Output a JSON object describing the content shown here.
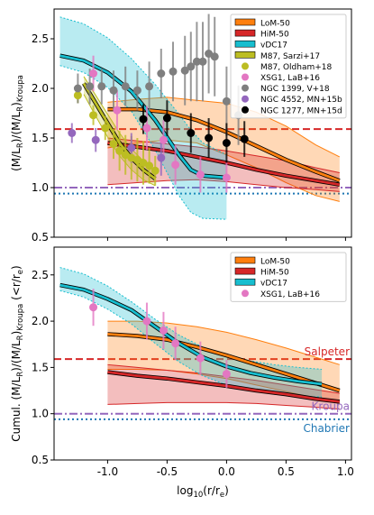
{
  "chart_data": [
    {
      "type": "line",
      "ylabel": "(M/L_R)/(M/L_R)_Kroupa",
      "xlim": [
        -1.45,
        1.05
      ],
      "ylim": [
        0.5,
        2.8
      ],
      "yticks": [
        "0.5",
        "1.0",
        "1.5",
        "2.0",
        "2.5"
      ],
      "grid": false,
      "legend_position": "top-right",
      "legend": [
        {
          "label": "LoM-50",
          "color": "#ff7f0e",
          "kind": "band"
        },
        {
          "label": "HiM-50",
          "color": "#d62728",
          "kind": "band"
        },
        {
          "label": "vDC17",
          "color": "#17becf",
          "kind": "band"
        },
        {
          "label": "M87, Sarzi+17",
          "color": "#bcbd22",
          "kind": "band"
        },
        {
          "label": "M87, Oldham+18",
          "color": "#bcbd22",
          "kind": "point"
        },
        {
          "label": "XSG1, LaB+16",
          "color": "#e377c2",
          "kind": "point"
        },
        {
          "label": "NGC 1399, V+18",
          "color": "#7f7f7f",
          "kind": "point"
        },
        {
          "label": "NGC 4552, MN+15b",
          "color": "#9467bd",
          "kind": "point"
        },
        {
          "label": "NGC 1277, MN+15d",
          "color": "#000000",
          "kind": "point"
        }
      ],
      "reference_lines": [
        {
          "name": "Salpeter",
          "y": 1.59,
          "color": "#d62728",
          "style": "dashed"
        },
        {
          "name": "Kroupa",
          "y": 1.0,
          "color": "#9467bd",
          "style": "dashdot"
        },
        {
          "name": "Chabrier",
          "y": 0.94,
          "color": "#1f77b4",
          "style": "dotted"
        }
      ],
      "series": [
        {
          "name": "LoM-50",
          "x": [
            -1.0,
            -0.75,
            -0.5,
            -0.25,
            0.0,
            0.25,
            0.5,
            0.75,
            0.95
          ],
          "y": [
            1.79,
            1.79,
            1.76,
            1.68,
            1.56,
            1.42,
            1.28,
            1.16,
            1.07
          ],
          "lower": [
            1.4,
            1.45,
            1.48,
            1.45,
            1.33,
            1.2,
            1.05,
            0.92,
            0.86
          ],
          "upper": [
            1.86,
            1.89,
            1.91,
            1.88,
            1.85,
            1.76,
            1.62,
            1.43,
            1.31
          ]
        },
        {
          "name": "HiM-50",
          "x": [
            -1.0,
            -0.75,
            -0.5,
            -0.25,
            0.0,
            0.25,
            0.5,
            0.75,
            0.95
          ],
          "y": [
            1.45,
            1.41,
            1.37,
            1.31,
            1.25,
            1.18,
            1.12,
            1.07,
            1.03
          ],
          "lower": [
            1.03,
            1.05,
            1.07,
            1.08,
            1.06,
            1.03,
            1.0,
            0.98,
            0.96
          ],
          "upper": [
            1.5,
            1.47,
            1.44,
            1.41,
            1.37,
            1.32,
            1.27,
            1.2,
            1.15
          ]
        },
        {
          "name": "vDC17",
          "x": [
            -1.4,
            -1.2,
            -1.0,
            -0.8,
            -0.6,
            -0.4,
            -0.3,
            -0.2,
            0.0
          ],
          "y": [
            2.33,
            2.28,
            2.16,
            1.97,
            1.68,
            1.33,
            1.18,
            1.12,
            1.1
          ],
          "lower": [
            2.23,
            2.16,
            2.01,
            1.77,
            1.38,
            0.92,
            0.75,
            0.69,
            0.68
          ],
          "upper": [
            2.72,
            2.65,
            2.51,
            2.3,
            2.04,
            1.74,
            1.58,
            1.45,
            1.33
          ]
        },
        {
          "name": "M87, Sarzi+17",
          "x": [
            -1.2,
            -1.1,
            -1.0,
            -0.9,
            -0.8,
            -0.7,
            -0.6
          ],
          "y": [
            2.05,
            1.85,
            1.65,
            1.45,
            1.3,
            1.18,
            1.09
          ],
          "lower": [
            1.94,
            1.72,
            1.51,
            1.32,
            1.18,
            1.08,
            1.02
          ],
          "upper": [
            2.12,
            1.93,
            1.74,
            1.55,
            1.39,
            1.27,
            1.17
          ]
        },
        {
          "name": "M87, Oldham+18",
          "x": [
            -1.25,
            -1.12,
            -1.02,
            -0.95,
            -0.9,
            -0.85,
            -0.8,
            -0.75,
            -0.7,
            -0.65,
            -0.6
          ],
          "y": [
            1.93,
            1.73,
            1.6,
            1.44,
            1.37,
            1.33,
            1.3,
            1.28,
            1.25,
            1.22,
            1.17
          ],
          "err": [
            0.08,
            0.1,
            0.12,
            0.15,
            0.2,
            0.2,
            0.22,
            0.22,
            0.22,
            0.18,
            0.15
          ]
        },
        {
          "name": "XSG1, LaB+16",
          "x": [
            -1.12,
            -0.92,
            -0.67,
            -0.53,
            -0.43,
            -0.22,
            0.0
          ],
          "y": [
            2.15,
            1.78,
            1.6,
            1.48,
            1.23,
            1.13,
            1.1
          ],
          "err": [
            0.18,
            0.2,
            0.22,
            0.2,
            0.2,
            0.18,
            0.15
          ]
        },
        {
          "name": "NGC 1399, V+18",
          "x": [
            -1.25,
            -1.15,
            -1.05,
            -0.95,
            -0.85,
            -0.75,
            -0.65,
            -0.55,
            -0.45,
            -0.35,
            -0.3,
            -0.25,
            -0.2,
            -0.15,
            -0.1,
            0.0,
            0.1
          ],
          "y": [
            2.0,
            2.02,
            2.02,
            1.98,
            2.02,
            1.98,
            2.02,
            2.15,
            2.17,
            2.18,
            2.22,
            2.27,
            2.27,
            2.35,
            2.32,
            1.87,
            1.73
          ],
          "err": [
            0.15,
            0.18,
            0.18,
            0.2,
            0.2,
            0.2,
            0.25,
            0.25,
            0.3,
            0.35,
            0.35,
            0.4,
            0.4,
            0.4,
            0.4,
            0.35,
            0.3
          ]
        },
        {
          "name": "NGC 4552, MN+15b",
          "x": [
            -1.3,
            -1.1,
            -0.8,
            -0.55
          ],
          "y": [
            1.55,
            1.48,
            1.4,
            1.3
          ],
          "err": [
            0.1,
            0.12,
            0.15,
            0.18
          ]
        },
        {
          "name": "NGC 1277, MN+15d",
          "x": [
            -0.7,
            -0.5,
            -0.3,
            -0.15,
            0.0,
            0.15
          ],
          "y": [
            1.69,
            1.7,
            1.55,
            1.5,
            1.45,
            1.49
          ],
          "err": [
            0.15,
            0.18,
            0.2,
            0.2,
            0.2,
            0.18
          ]
        }
      ]
    },
    {
      "type": "line",
      "xlabel": "log10(r/re)",
      "ylabel": "Cumul. (M/L_R)/(M/L_R)_Kroupa (<r/re)",
      "xlim": [
        -1.45,
        1.05
      ],
      "ylim": [
        0.5,
        2.8
      ],
      "xticks": [
        "-1.0",
        "-0.5",
        "0.0",
        "0.5",
        "1.0"
      ],
      "yticks": [
        "0.5",
        "1.0",
        "1.5",
        "2.0",
        "2.5"
      ],
      "grid": false,
      "legend_position": "top-right",
      "legend": [
        {
          "label": "LoM-50",
          "color": "#ff7f0e",
          "kind": "band"
        },
        {
          "label": "HiM-50",
          "color": "#d62728",
          "kind": "band"
        },
        {
          "label": "vDC17",
          "color": "#17becf",
          "kind": "band"
        },
        {
          "label": "XSG1, LaB+16",
          "color": "#e377c2",
          "kind": "point"
        }
      ],
      "annotations": [
        "Salpeter",
        "Kroupa",
        "Chabrier"
      ],
      "reference_lines": [
        {
          "name": "Salpeter",
          "y": 1.59,
          "color": "#d62728",
          "style": "dashed"
        },
        {
          "name": "Kroupa",
          "y": 1.0,
          "color": "#9467bd",
          "style": "dashdot"
        },
        {
          "name": "Chabrier",
          "y": 0.94,
          "color": "#1f77b4",
          "style": "dotted"
        }
      ],
      "series": [
        {
          "name": "LoM-50",
          "x": [
            -1.0,
            -0.75,
            -0.5,
            -0.25,
            0.0,
            0.25,
            0.5,
            0.75,
            0.95
          ],
          "y": [
            1.86,
            1.84,
            1.8,
            1.72,
            1.63,
            1.53,
            1.43,
            1.33,
            1.25
          ],
          "lower": [
            1.48,
            1.48,
            1.47,
            1.43,
            1.38,
            1.31,
            1.24,
            1.17,
            1.11
          ],
          "upper": [
            2.0,
            2.0,
            1.98,
            1.94,
            1.88,
            1.8,
            1.71,
            1.61,
            1.53
          ]
        },
        {
          "name": "HiM-50",
          "x": [
            -1.0,
            -0.75,
            -0.5,
            -0.25,
            0.0,
            0.25,
            0.5,
            0.75,
            0.95
          ],
          "y": [
            1.45,
            1.41,
            1.38,
            1.34,
            1.3,
            1.25,
            1.21,
            1.16,
            1.13
          ],
          "lower": [
            1.1,
            1.11,
            1.12,
            1.12,
            1.12,
            1.11,
            1.09,
            1.07,
            1.05
          ],
          "upper": [
            1.53,
            1.5,
            1.47,
            1.44,
            1.4,
            1.36,
            1.31,
            1.26,
            1.22
          ]
        },
        {
          "name": "vDC17",
          "x": [
            -1.4,
            -1.2,
            -1.0,
            -0.8,
            -0.6,
            -0.4,
            -0.2,
            0.0,
            0.2,
            0.4,
            0.6,
            0.8
          ],
          "y": [
            2.39,
            2.34,
            2.24,
            2.12,
            1.94,
            1.76,
            1.61,
            1.51,
            1.44,
            1.39,
            1.35,
            1.32
          ],
          "lower": [
            2.33,
            2.26,
            2.13,
            1.97,
            1.76,
            1.56,
            1.41,
            1.31,
            1.25,
            1.21,
            1.19,
            1.18
          ],
          "upper": [
            2.58,
            2.51,
            2.38,
            2.21,
            2.02,
            1.85,
            1.72,
            1.63,
            1.57,
            1.53,
            1.5,
            1.48
          ]
        },
        {
          "name": "XSG1, LaB+16",
          "x": [
            -1.12,
            -0.67,
            -0.53,
            -0.43,
            -0.22,
            0.0
          ],
          "y": [
            2.15,
            2.0,
            1.9,
            1.76,
            1.6,
            1.43
          ],
          "err": [
            0.2,
            0.2,
            0.2,
            0.18,
            0.18,
            0.15
          ]
        }
      ]
    }
  ]
}
